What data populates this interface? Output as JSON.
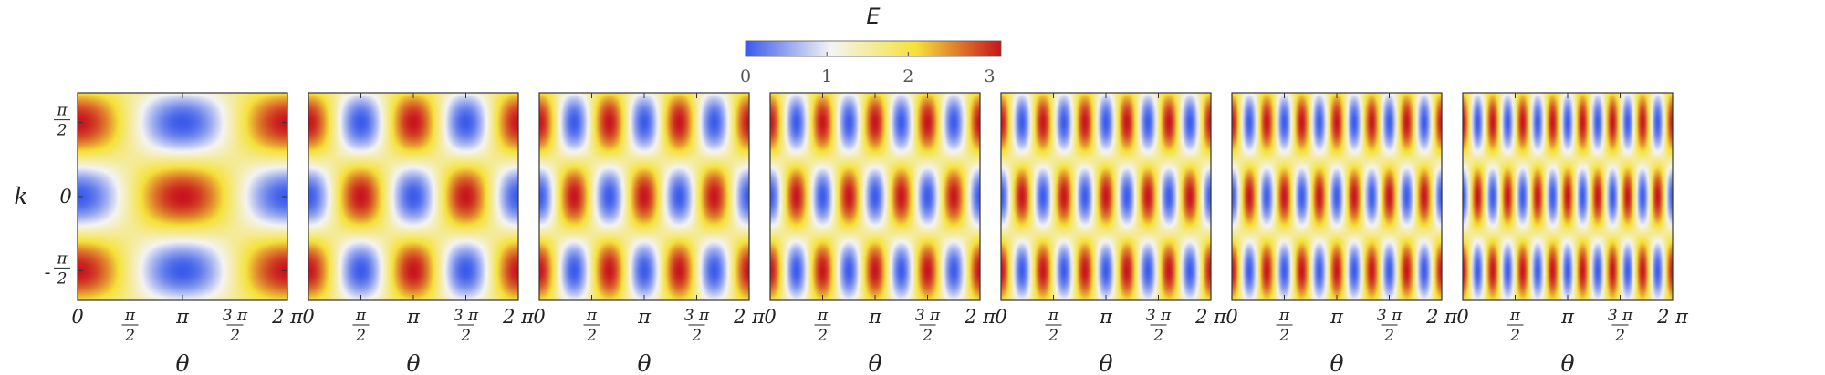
{
  "chart_data": {
    "type": "heatmap",
    "title": "",
    "colorbar": {
      "label": "E",
      "min": 0,
      "max": 3.14,
      "ticks": [
        "0",
        "1",
        "2",
        "3"
      ],
      "tick_values": [
        0,
        1,
        2,
        3
      ],
      "colors": [
        "#3a5bea",
        "#f4f4f4",
        "#f5e23a",
        "#c8141e"
      ]
    },
    "xlabel": "θ",
    "ylabel": "k",
    "xlim": [
      0,
      6.2832
    ],
    "ylim": [
      -2.2,
      2.2
    ],
    "x_ticks": [
      {
        "value": 0,
        "label": "0"
      },
      {
        "value": 1.5708,
        "num": "π",
        "den": "2"
      },
      {
        "value": 3.1416,
        "label": "π"
      },
      {
        "value": 4.7124,
        "num": "3 π",
        "den": "2"
      },
      {
        "value": 6.2832,
        "label": "2 π"
      }
    ],
    "y_ticks": [
      {
        "value": 1.5708,
        "num": "π",
        "den": "2"
      },
      {
        "value": 0,
        "label": "0"
      },
      {
        "value": -1.5708,
        "num": "π",
        "den": "2",
        "minus": "-"
      }
    ],
    "panels": [
      {
        "frequency": 1
      },
      {
        "frequency": 2
      },
      {
        "frequency": 3
      },
      {
        "frequency": 4
      },
      {
        "frequency": 5
      },
      {
        "frequency": 6
      },
      {
        "frequency": 7
      }
    ]
  }
}
